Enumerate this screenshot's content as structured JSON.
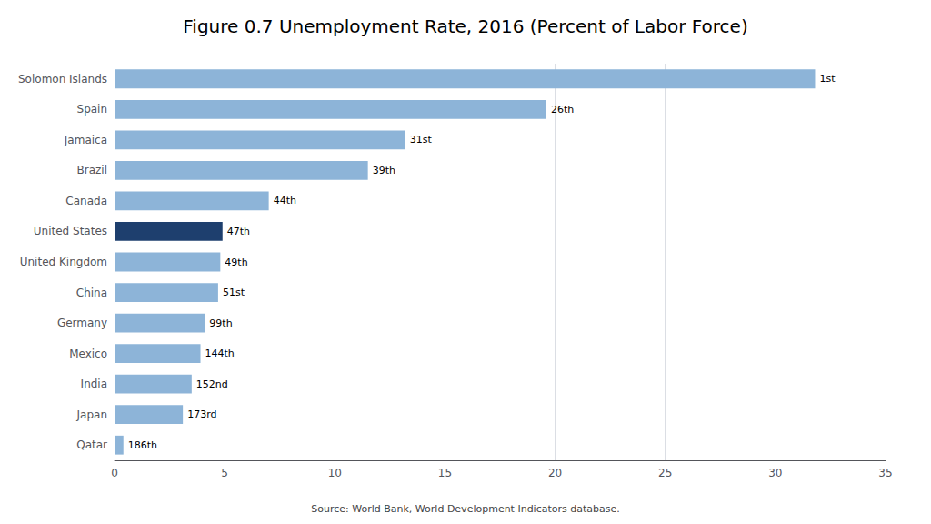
{
  "chart_data": {
    "type": "bar",
    "title": "Figure 0.7 Unemployment Rate, 2016 (Percent of Labor Force)",
    "source": "Source: World Bank, World Development Indicators database.",
    "orientation": "horizontal",
    "categories": [
      "Solomon Islands",
      "Spain",
      "Jamaica",
      "Brazil",
      "Canada",
      "United States",
      "United Kingdom",
      "China",
      "Germany",
      "Mexico",
      "India",
      "Japan",
      "Qatar"
    ],
    "values": [
      31.8,
      19.6,
      13.2,
      11.5,
      7.0,
      4.9,
      4.8,
      4.7,
      4.1,
      3.9,
      3.5,
      3.1,
      0.4
    ],
    "annotations": [
      "1st",
      "26th",
      "31st",
      "39th",
      "44th",
      "47th",
      "49th",
      "51st",
      "99th",
      "144th",
      "152nd",
      "173rd",
      "186th"
    ],
    "colors": [
      "#8db4d8",
      "#8db4d8",
      "#8db4d8",
      "#8db4d8",
      "#8db4d8",
      "#1e3f6e",
      "#8db4d8",
      "#8db4d8",
      "#8db4d8",
      "#8db4d8",
      "#8db4d8",
      "#8db4d8",
      "#8db4d8"
    ],
    "xlim": [
      0,
      35
    ],
    "xticks": [
      0,
      5,
      10,
      15,
      20,
      25,
      30,
      35
    ],
    "grid": true
  }
}
